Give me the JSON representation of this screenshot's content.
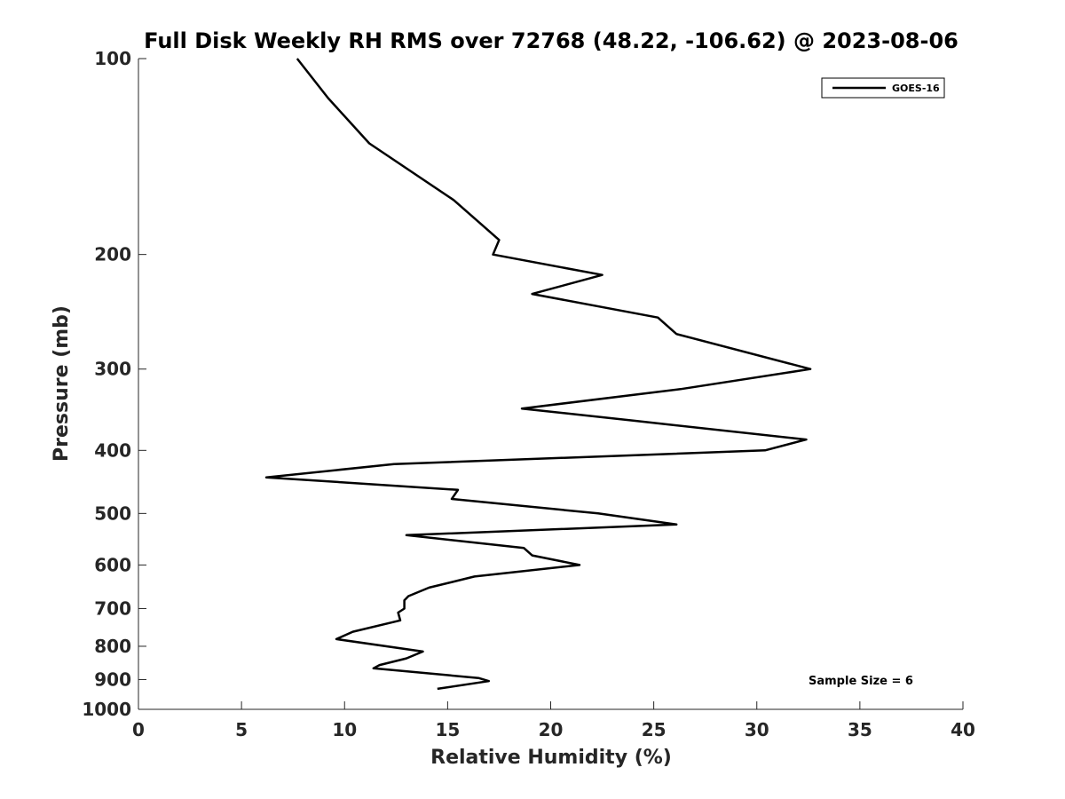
{
  "chart_data": {
    "type": "line",
    "title": "Full Disk Weekly RH RMS over 72768 (48.22, -106.62) @ 2023-08-06",
    "xlabel": "Relative Humidity (%)",
    "ylabel": "Pressure (mb)",
    "xlim": [
      0,
      40
    ],
    "ylim": [
      100,
      1000
    ],
    "y_scale": "log",
    "y_reversed": true,
    "grid": false,
    "legend_position": "top-right",
    "x_ticks": [
      "0",
      "5",
      "10",
      "15",
      "20",
      "25",
      "30",
      "35",
      "40"
    ],
    "y_ticks": [
      "100",
      "200",
      "300",
      "400",
      "500",
      "600",
      "700",
      "800",
      "900",
      "1000"
    ],
    "series": [
      {
        "name": "GOES-16",
        "color": "#000000",
        "points": [
          [
            7.7,
            100
          ],
          [
            9.2,
            115
          ],
          [
            11.2,
            135
          ],
          [
            15.3,
            165
          ],
          [
            17.5,
            190
          ],
          [
            17.2,
            200
          ],
          [
            22.5,
            215
          ],
          [
            19.1,
            230
          ],
          [
            25.2,
            250
          ],
          [
            26.1,
            265
          ],
          [
            32.6,
            300
          ],
          [
            26.3,
            322
          ],
          [
            18.6,
            345
          ],
          [
            24.0,
            360
          ],
          [
            32.4,
            385
          ],
          [
            30.4,
            400
          ],
          [
            12.4,
            420
          ],
          [
            6.2,
            440
          ],
          [
            15.5,
            460
          ],
          [
            15.2,
            475
          ],
          [
            22.3,
            500
          ],
          [
            26.1,
            520
          ],
          [
            13.0,
            540
          ],
          [
            18.7,
            565
          ],
          [
            19.1,
            580
          ],
          [
            21.4,
            600
          ],
          [
            16.3,
            625
          ],
          [
            14.1,
            650
          ],
          [
            13.1,
            670
          ],
          [
            12.9,
            680
          ],
          [
            12.9,
            700
          ],
          [
            12.6,
            710
          ],
          [
            12.7,
            730
          ],
          [
            10.4,
            760
          ],
          [
            9.6,
            780
          ],
          [
            13.8,
            815
          ],
          [
            13.0,
            835
          ],
          [
            11.7,
            855
          ],
          [
            11.4,
            865
          ],
          [
            16.5,
            895
          ],
          [
            17.0,
            905
          ],
          [
            14.5,
            930
          ]
        ]
      }
    ],
    "annotations": [
      "Sample Size = 6"
    ]
  }
}
